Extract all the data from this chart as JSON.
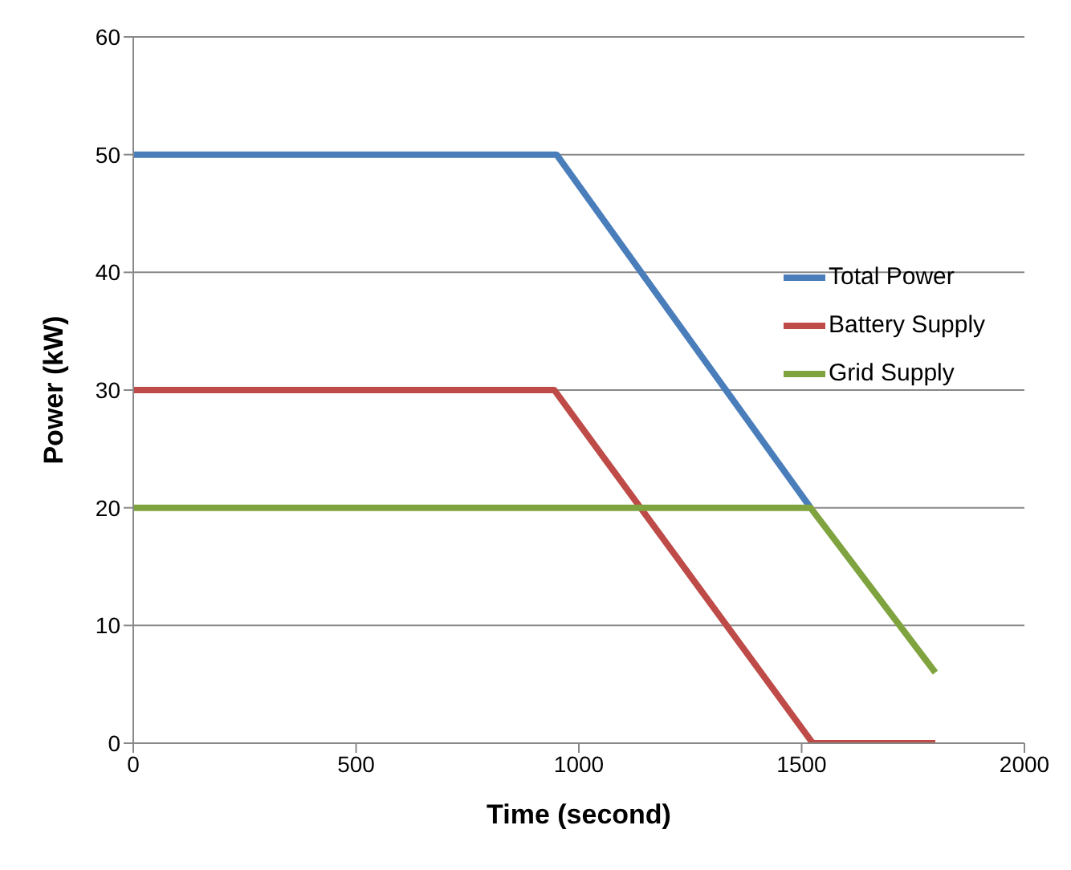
{
  "chart_data": {
    "type": "line",
    "xlabel": "Time (second)",
    "ylabel": "Power (kW)",
    "xlim": [
      0,
      2000
    ],
    "xticks": [
      0,
      500,
      1000,
      1500,
      2000
    ],
    "ylim": [
      0,
      60
    ],
    "yticks": [
      0,
      10,
      20,
      30,
      40,
      50,
      60
    ],
    "grid": "y",
    "legend": "right",
    "marker": "none",
    "line_style": "solid",
    "series": [
      {
        "name": "Total Power",
        "color": "#4a7ebb",
        "x": [
          0,
          950,
          1520
        ],
        "values": [
          50,
          50,
          20
        ]
      },
      {
        "name": "Battery Supply",
        "color": "#be4b48",
        "x": [
          0,
          945,
          1525,
          1800
        ],
        "values": [
          30,
          30,
          0,
          0
        ]
      },
      {
        "name": "Grid Supply",
        "color": "#7fa33f",
        "x": [
          0,
          1520,
          1800
        ],
        "values": [
          20,
          20,
          6
        ]
      }
    ]
  }
}
